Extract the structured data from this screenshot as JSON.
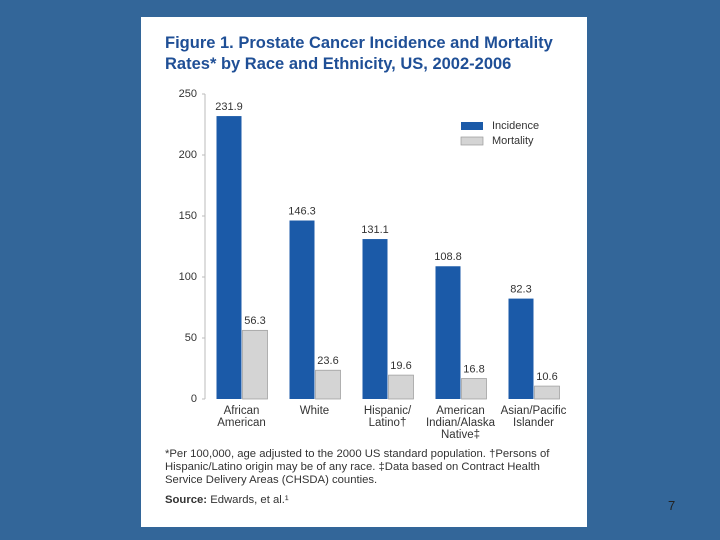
{
  "chart_data": {
    "type": "bar",
    "title": "Figure 1. Prostate Cancer Incidence and Mortality Rates* by Race and Ethnicity, US, 2002-2006",
    "categories": [
      "African\nAmerican",
      "White",
      "Hispanic/\nLatino†",
      "American\nIndian/Alaska\nNative‡",
      "Asian/Pacific\nIslander"
    ],
    "series": [
      {
        "name": "Incidence",
        "color": "#1b5aa8",
        "values": [
          231.9,
          146.3,
          131.1,
          108.8,
          82.3
        ]
      },
      {
        "name": "Mortality",
        "color": "#d4d4d4",
        "values": [
          56.3,
          23.6,
          19.6,
          16.8,
          10.6
        ]
      }
    ],
    "ylim": [
      0,
      250
    ],
    "yticks": [
      0,
      50,
      100,
      150,
      200,
      250
    ],
    "grid": false,
    "legend": "upper right",
    "footnote": "*Per 100,000, age adjusted to the 2000 US standard population. †Persons of Hispanic/Latino origin may be of any race. ‡Data based on Contract Health Service Delivery Areas (CHSDA) counties.",
    "source_label": "Source:",
    "source": "Edwards, et al.¹"
  },
  "slide_number": "7"
}
